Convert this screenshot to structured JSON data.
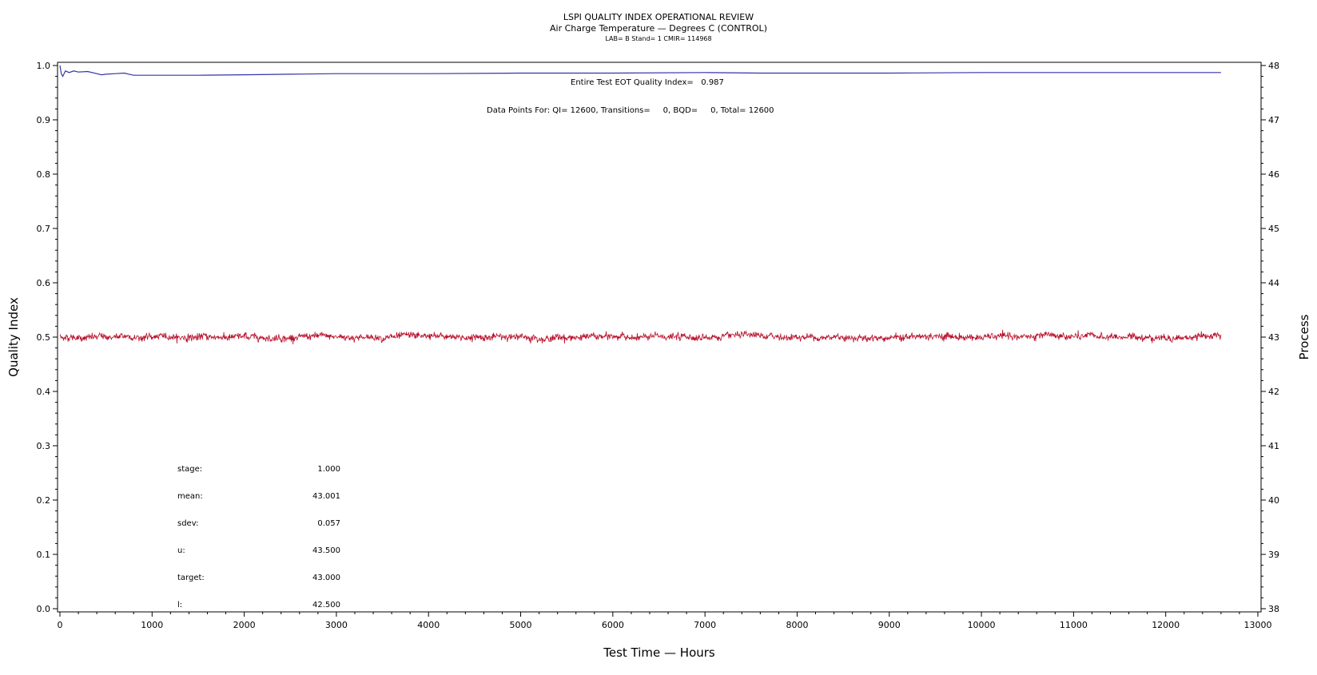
{
  "chart_data": {
    "type": "line",
    "title": "LSPI QUALITY INDEX OPERATIONAL REVIEW",
    "subtitle": "Air Charge Temperature — Degrees C (CONTROL)",
    "subtitle2": "LAB= B Stand= 1 CMIR= 114968",
    "xlabel": "Test Time — Hours",
    "ylabel": "Quality Index",
    "y2label": "Process",
    "xlim": [
      0,
      13000
    ],
    "ylim": [
      0.0,
      1.0
    ],
    "y2lim": [
      38,
      48
    ],
    "x_ticks": [
      "0",
      "1000",
      "2000",
      "3000",
      "4000",
      "5000",
      "6000",
      "7000",
      "8000",
      "9000",
      "10000",
      "11000",
      "12000",
      "13000"
    ],
    "y_ticks": [
      "0.0",
      "0.1",
      "0.2",
      "0.3",
      "0.4",
      "0.5",
      "0.6",
      "0.7",
      "0.8",
      "0.9",
      "1.0"
    ],
    "y2_ticks": [
      "38",
      "39",
      "40",
      "41",
      "42",
      "43",
      "44",
      "45",
      "46",
      "47",
      "48"
    ],
    "annotation_qi": "Entire Test EOT Quality Index=   0.987",
    "annotation_points": "Data Points For: QI= 12600, Transitions=     0, BQD=     0, Total= 12600",
    "series": [
      {
        "name": "Quality Index",
        "axis": "left",
        "color": "#3333aa",
        "x": [
          0,
          15,
          30,
          60,
          100,
          150,
          200,
          300,
          400,
          450,
          500,
          600,
          700,
          750,
          800,
          900,
          1000,
          1500,
          2000,
          2500,
          3000,
          4000,
          5000,
          6000,
          7000,
          7600,
          8000,
          9000,
          10000,
          11000,
          12000,
          12600
        ],
        "values": [
          1.0,
          0.985,
          0.98,
          0.99,
          0.987,
          0.99,
          0.988,
          0.989,
          0.985,
          0.983,
          0.984,
          0.985,
          0.986,
          0.984,
          0.982,
          0.982,
          0.982,
          0.982,
          0.983,
          0.984,
          0.985,
          0.985,
          0.986,
          0.986,
          0.987,
          0.986,
          0.986,
          0.986,
          0.987,
          0.987,
          0.987,
          0.987
        ]
      },
      {
        "name": "Process",
        "axis": "right",
        "color": "#b8102a",
        "mean": 43.001,
        "sdev": 0.057,
        "x_start": 0,
        "x_end": 12600,
        "n_points": 12600
      }
    ],
    "stats": [
      {
        "label": "stage:",
        "value": "1.000"
      },
      {
        "label": "mean:",
        "value": "43.001"
      },
      {
        "label": "sdev:",
        "value": "0.057"
      },
      {
        "label": "u:",
        "value": "43.500"
      },
      {
        "label": "target:",
        "value": "43.000"
      },
      {
        "label": "l:",
        "value": "42.500"
      }
    ]
  }
}
